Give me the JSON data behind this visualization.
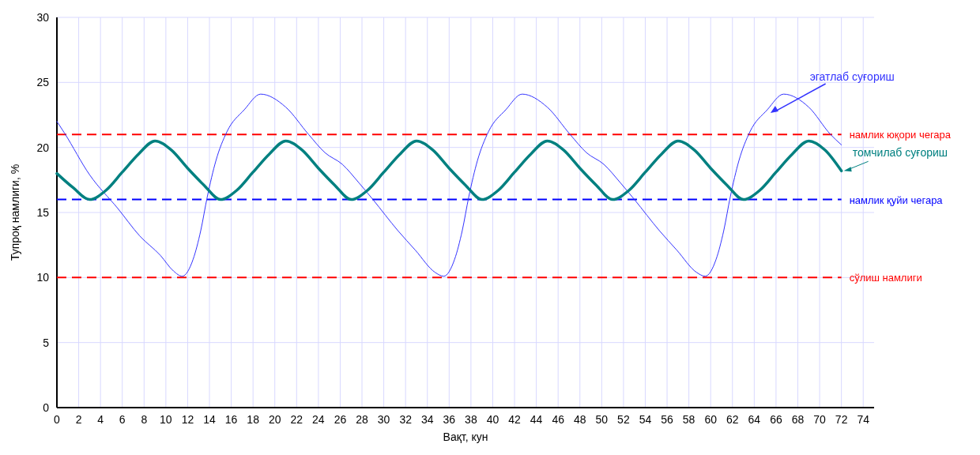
{
  "chart_data": {
    "type": "line",
    "xlabel": "Вақт, кун",
    "ylabel": "Тупроқ намлиги, %",
    "xlim": [
      0,
      75
    ],
    "xticks": [
      0,
      2,
      4,
      6,
      8,
      10,
      12,
      14,
      16,
      18,
      20,
      22,
      24,
      26,
      28,
      30,
      32,
      34,
      36,
      38,
      40,
      42,
      44,
      46,
      48,
      50,
      52,
      54,
      56,
      58,
      60,
      62,
      64,
      66,
      68,
      70,
      72,
      74
    ],
    "ylim": [
      0,
      30
    ],
    "yticks": [
      0,
      5,
      10,
      15,
      20,
      25,
      30
    ],
    "grid": true,
    "marker": "none",
    "series": [
      {
        "name": "эгатлаб суғориш",
        "color": "#3333ff",
        "x": [
          0,
          0.7,
          3,
          5.6,
          7.6,
          9.5,
          10.7,
          11.5,
          12.5,
          13.2,
          13.8,
          14.6,
          15.6,
          17.2,
          18.7,
          21,
          23.1,
          24.6,
          26.2,
          27.7,
          29,
          31.3,
          32.9,
          34.7,
          35.5,
          36.5,
          37.2,
          37.8,
          38.6,
          39.6,
          41.2,
          42.7,
          45,
          47.1,
          48.6,
          50.2,
          51.7,
          53,
          55.3,
          56.9,
          58.7,
          59.5,
          60.5,
          61.2,
          61.8,
          62.6,
          63.6,
          65.2,
          66.7,
          69,
          71,
          72
        ],
        "values": [
          22,
          21.1,
          17.9,
          15.3,
          13.2,
          11.7,
          10.5,
          10.1,
          11.4,
          13.6,
          16.2,
          19,
          21.2,
          22.9,
          24.1,
          23.1,
          21,
          19.6,
          18.7,
          17.3,
          16,
          13.6,
          12.1,
          10.4,
          10.1,
          11.4,
          13.6,
          16.2,
          19,
          21.2,
          22.9,
          24.1,
          23.1,
          21,
          19.6,
          18.7,
          17.3,
          16,
          13.6,
          12.1,
          10.4,
          10.1,
          11.4,
          13.6,
          16.2,
          19,
          21.2,
          22.9,
          24.1,
          23.1,
          21,
          20.2
        ]
      },
      {
        "name": "томчилаб суғориш",
        "color": "#008080",
        "x": [
          0,
          1.5,
          3,
          4.5,
          6,
          7.5,
          9,
          10.5,
          12,
          13.5,
          15,
          16.5,
          18,
          19.5,
          21,
          22.5,
          24,
          25.5,
          27,
          28.5,
          30,
          31.5,
          33,
          34.5,
          36,
          37.5,
          39,
          40.5,
          42,
          43.5,
          45,
          46.5,
          48,
          49.5,
          51,
          52.5,
          54,
          55.5,
          57,
          58.5,
          60,
          61.5,
          63,
          64.5,
          66,
          67.5,
          69,
          70.5,
          72
        ],
        "values": [
          18,
          16.9,
          16,
          16.7,
          18.1,
          19.5,
          20.5,
          19.8,
          18.4,
          17.1,
          16,
          16.7,
          18.1,
          19.5,
          20.5,
          19.8,
          18.4,
          17.1,
          16,
          16.7,
          18.1,
          19.5,
          20.5,
          19.8,
          18.4,
          17.1,
          16,
          16.7,
          18.1,
          19.5,
          20.5,
          19.8,
          18.4,
          17.1,
          16,
          16.7,
          18.1,
          19.5,
          20.5,
          19.8,
          18.4,
          17.1,
          16,
          16.7,
          18.1,
          19.5,
          20.5,
          19.8,
          18.2
        ]
      }
    ],
    "ref_lines": [
      {
        "axis": "y",
        "value": 21,
        "label": "намлик юқори чегара",
        "color": "#ff0000",
        "line_style": "dashed"
      },
      {
        "axis": "y",
        "value": 16,
        "label": "намлик қуйи чегара",
        "color": "#0000ff",
        "line_style": "dashed"
      },
      {
        "axis": "y",
        "value": 10,
        "label": "сўлиш намлиги",
        "color": "#ff0000",
        "line_style": "dashed"
      }
    ]
  }
}
